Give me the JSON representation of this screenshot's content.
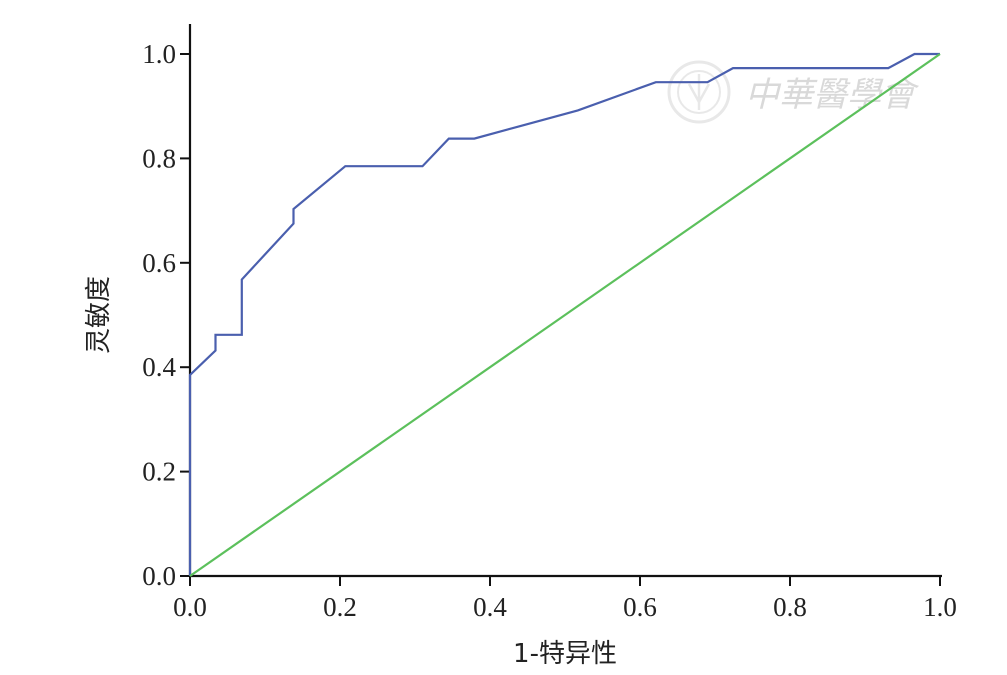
{
  "chart_data": {
    "type": "line",
    "xlabel": "1-特异性",
    "ylabel": "灵敏度",
    "xlim": [
      0,
      1
    ],
    "ylim": [
      0,
      1
    ],
    "x_ticks": [
      "0.0",
      "0.2",
      "0.4",
      "0.6",
      "0.8",
      "1.0"
    ],
    "y_ticks": [
      "0.0",
      "0.2",
      "0.4",
      "0.6",
      "0.8",
      "1.0"
    ],
    "grid": false,
    "series": [
      {
        "color": "#4a5fae",
        "points": [
          [
            0.0,
            0.0
          ],
          [
            0.0,
            0.385
          ],
          [
            0.034,
            0.432
          ],
          [
            0.034,
            0.462
          ],
          [
            0.069,
            0.462
          ],
          [
            0.069,
            0.568
          ],
          [
            0.138,
            0.675
          ],
          [
            0.138,
            0.703
          ],
          [
            0.207,
            0.785
          ],
          [
            0.31,
            0.785
          ],
          [
            0.345,
            0.838
          ],
          [
            0.379,
            0.838
          ],
          [
            0.517,
            0.892
          ],
          [
            0.621,
            0.946
          ],
          [
            0.69,
            0.946
          ],
          [
            0.724,
            0.973
          ],
          [
            0.931,
            0.973
          ],
          [
            0.966,
            1.0
          ],
          [
            1.0,
            1.0
          ]
        ]
      },
      {
        "color": "#5cc05c",
        "points": [
          [
            0.0,
            0.0
          ],
          [
            1.0,
            1.0
          ]
        ]
      }
    ]
  },
  "watermark": {
    "text": "中華醫學會"
  }
}
